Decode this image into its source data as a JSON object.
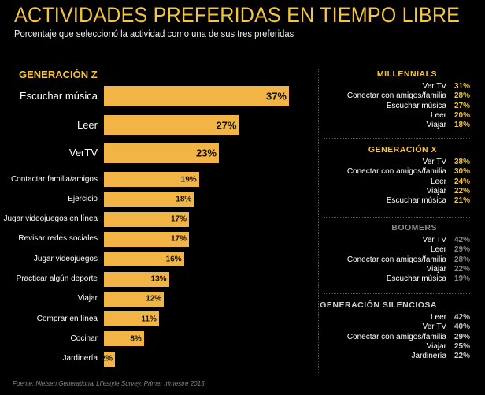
{
  "title": "ACTIVIDADES PREFERIDAS EN TIEMPO LIBRE",
  "subtitle": "Porcentaje que seleccionó la actividad como una de sus tres preferidas",
  "source": "Fuente: Nielsen Generational Lifestyle Survey, Primer trimestre 2015",
  "colors": {
    "bar": "#f2b444",
    "accent": "#f5c53e",
    "boomers": "#8a8a8a",
    "silenciosa": "#cfcfcf"
  },
  "chart_data": {
    "type": "bar",
    "orientation": "horizontal",
    "title": "GENERACIÓN Z",
    "categories": [
      "Escuchar música",
      "Leer",
      "VerTV",
      "Contactar familia/amigos",
      "Ejercicio",
      "Jugar videojuegos en línea",
      "Revisar redes sociales",
      "Jugar videojuegos",
      "Practicar algún deporte",
      "Viajar",
      "Comprar en línea",
      "Cocinar",
      "Jardinería"
    ],
    "values": [
      37,
      27,
      23,
      19,
      18,
      17,
      17,
      16,
      13,
      12,
      11,
      8,
      2
    ],
    "labels": [
      "37%",
      "27%",
      "23%",
      "19%",
      "18%",
      "17%",
      "17%",
      "16%",
      "13%",
      "12%",
      "11%",
      "8%",
      "2%"
    ]
  },
  "groups": [
    {
      "title": "MILLENNIALS",
      "color": "#f5c53e",
      "titleColor": "#f5c53e",
      "items": [
        {
          "label": "Ver TV",
          "value": "31%"
        },
        {
          "label": "Conectar con amigos/familia",
          "value": "28%"
        },
        {
          "label": "Escuchar música",
          "value": "27%"
        },
        {
          "label": "Leer",
          "value": "20%"
        },
        {
          "label": "Viajar",
          "value": "18%"
        }
      ]
    },
    {
      "title": "GENERACIÓN X",
      "color": "#f5c53e",
      "titleColor": "#f5c53e",
      "items": [
        {
          "label": "Ver TV",
          "value": "38%"
        },
        {
          "label": "Conectar con amigos/familia",
          "value": "30%"
        },
        {
          "label": "Leer",
          "value": "24%"
        },
        {
          "label": "Viajar",
          "value": "22%"
        },
        {
          "label": "Escuchar música",
          "value": "21%"
        }
      ]
    },
    {
      "title": "BOOMERS",
      "color": "#8a8a8a",
      "titleColor": "#8a8a8a",
      "items": [
        {
          "label": "Ver TV",
          "value": "42%"
        },
        {
          "label": "Leer",
          "value": "29%"
        },
        {
          "label": "Conectar con amigos/familia",
          "value": "28%"
        },
        {
          "label": "Viajar",
          "value": "22%"
        },
        {
          "label": "Escuchar música",
          "value": "19%"
        }
      ]
    },
    {
      "title": "GENERACIÓN SILENCIOSA",
      "color": "#cfcfcf",
      "titleColor": "#cfcfcf",
      "items": [
        {
          "label": "Leer",
          "value": "42%"
        },
        {
          "label": "Ver TV",
          "value": "40%"
        },
        {
          "label": "Conectar con amigos/familia",
          "value": "29%"
        },
        {
          "label": "Viajar",
          "value": "25%"
        },
        {
          "label": "Jardinería",
          "value": "22%"
        }
      ]
    }
  ]
}
